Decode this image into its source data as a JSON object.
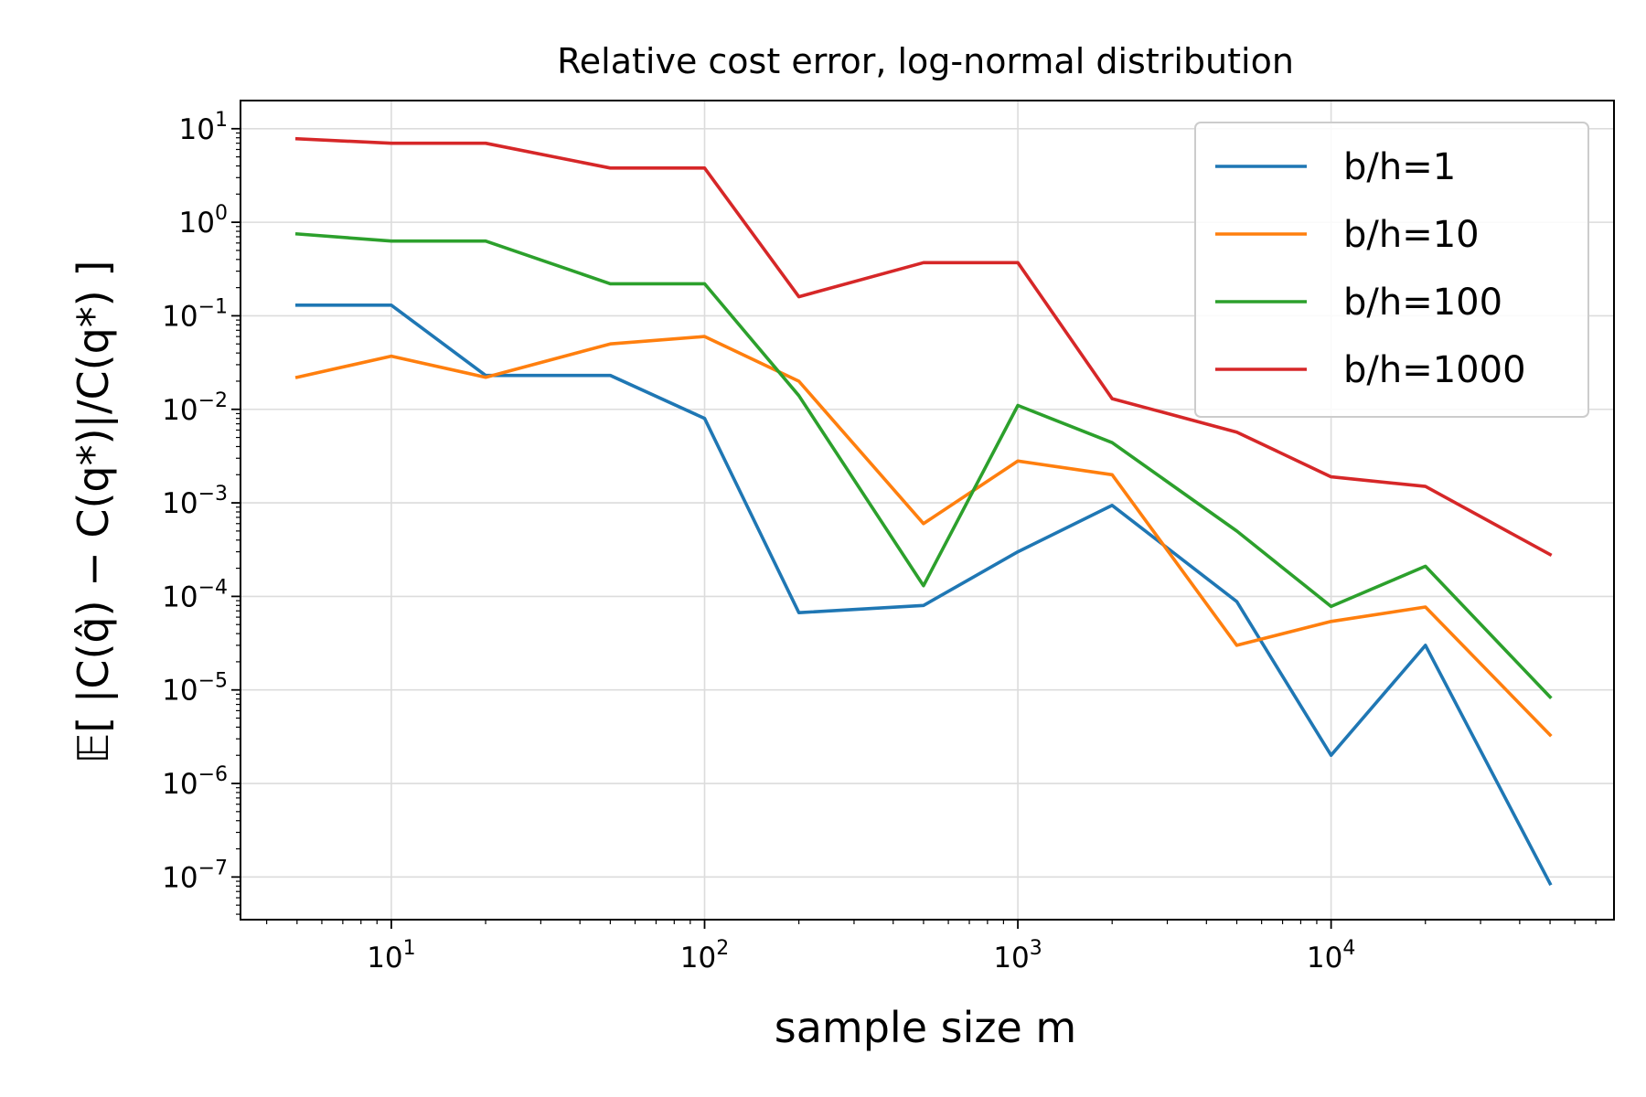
{
  "chart_data": {
    "type": "line",
    "title": "Relative cost error, log-normal distribution",
    "xlabel": "sample size  m",
    "ylabel": "𝔼[ |C(q̂) − C(q*)|/C(q*) ]",
    "xscale": "log",
    "yscale": "log",
    "xlim": [
      3.3,
      80000
    ],
    "ylim": [
      3.5e-08,
      20
    ],
    "x_ticks": [
      {
        "value": 10,
        "base": "10",
        "exp": "1"
      },
      {
        "value": 100,
        "base": "10",
        "exp": "2"
      },
      {
        "value": 1000,
        "base": "10",
        "exp": "3"
      },
      {
        "value": 10000,
        "base": "10",
        "exp": "4"
      }
    ],
    "y_ticks": [
      {
        "value": 10,
        "base": "10",
        "exp": "1"
      },
      {
        "value": 1,
        "base": "10",
        "exp": "0"
      },
      {
        "value": 0.1,
        "base": "10",
        "exp": "−1"
      },
      {
        "value": 0.01,
        "base": "10",
        "exp": "−2"
      },
      {
        "value": 0.001,
        "base": "10",
        "exp": "−3"
      },
      {
        "value": 0.0001,
        "base": "10",
        "exp": "−4"
      },
      {
        "value": 1e-05,
        "base": "10",
        "exp": "−5"
      },
      {
        "value": 1e-06,
        "base": "10",
        "exp": "−6"
      },
      {
        "value": 1e-07,
        "base": "10",
        "exp": "−7"
      }
    ],
    "grid": true,
    "legend_position": "top-right",
    "x": [
      5,
      10,
      20,
      50,
      100,
      200,
      500,
      1000,
      2000,
      5000,
      10000,
      20000,
      50000
    ],
    "series": [
      {
        "name": "b/h=1",
        "color": "#1f77b4",
        "values": [
          0.13,
          0.13,
          0.023,
          0.023,
          0.008,
          6.7e-05,
          8e-05,
          0.0003,
          0.00094,
          8.8e-05,
          2e-06,
          3e-05,
          8.5e-08
        ]
      },
      {
        "name": "b/h=10",
        "color": "#ff7f0e",
        "values": [
          0.022,
          0.037,
          0.022,
          0.05,
          0.06,
          0.02,
          0.0006,
          0.0028,
          0.002,
          3e-05,
          5.4e-05,
          7.7e-05,
          3.3e-06
        ]
      },
      {
        "name": "b/h=100",
        "color": "#2ca02c",
        "values": [
          0.75,
          0.63,
          0.63,
          0.22,
          0.22,
          0.014,
          0.00013,
          0.011,
          0.0044,
          0.0005,
          7.8e-05,
          0.00021,
          8.4e-06
        ]
      },
      {
        "name": "b/h=1000",
        "color": "#d62728",
        "values": [
          7.8,
          7.0,
          7.0,
          3.8,
          3.8,
          0.16,
          0.37,
          0.37,
          0.013,
          0.0057,
          0.0019,
          0.0015,
          0.00028
        ]
      }
    ]
  }
}
